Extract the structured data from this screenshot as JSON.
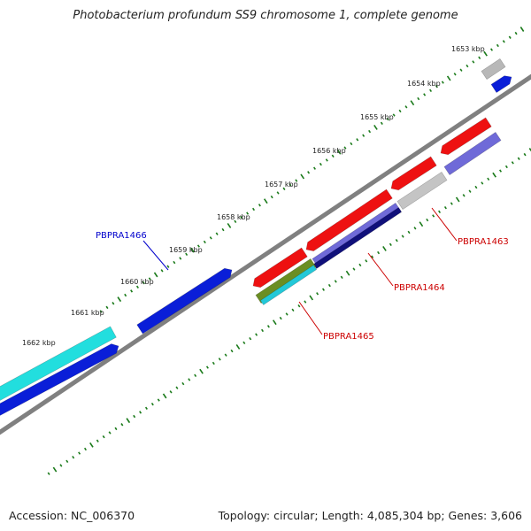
{
  "title": "Photobacterium profundum SS9 chromosome 1, complete genome",
  "footer": {
    "accession": "Accession: NC_006370",
    "summary": "Topology: circular; Length: 4,085,304 bp; Genes: 3,606"
  },
  "colors": {
    "backbone": "#808080",
    "tick": "#1a7a1a",
    "label_red": "#cc0000",
    "label_blue": "#0000cc"
  },
  "kbp_labels": [
    "1653 kbp",
    "1654 kbp",
    "1655 kbp",
    "1656 kbp",
    "1657 kbp",
    "1658 kbp",
    "1659 kbp",
    "1660 kbp",
    "1661 kbp",
    "1662 kbp"
  ],
  "gene_labels": [
    {
      "id": "PBPRA1466",
      "color": "#0000cc"
    },
    {
      "id": "PBPRA1463",
      "color": "#cc0000"
    },
    {
      "id": "PBPRA1464",
      "color": "#cc0000"
    },
    {
      "id": "PBPRA1465",
      "color": "#cc0000"
    }
  ],
  "features": [
    {
      "name": "gene-gray-top",
      "color": "#b8b8b8"
    },
    {
      "name": "gene-blue-top",
      "color": "#0a1ed8"
    },
    {
      "name": "gene-red-1",
      "color": "#ee1111"
    },
    {
      "name": "gene-lavender-1",
      "color": "#6f6ad8"
    },
    {
      "name": "gene-red-2",
      "color": "#ee1111"
    },
    {
      "name": "gene-gray-mid",
      "color": "#c4c4c4"
    },
    {
      "name": "gene-red-3",
      "color": "#ee1111"
    },
    {
      "name": "gene-lavender-2",
      "color": "#6f6ad8"
    },
    {
      "name": "gene-navy",
      "color": "#10107a"
    },
    {
      "name": "gene-red-4",
      "color": "#ee1111"
    },
    {
      "name": "gene-olive",
      "color": "#6b8e23"
    },
    {
      "name": "gene-cyan-small",
      "color": "#22c8d8"
    },
    {
      "name": "gene-blue-mid",
      "color": "#0a1ed8"
    },
    {
      "name": "gene-cyan-left",
      "color": "#22dede"
    },
    {
      "name": "gene-blue-left",
      "color": "#0a1ed8"
    }
  ]
}
